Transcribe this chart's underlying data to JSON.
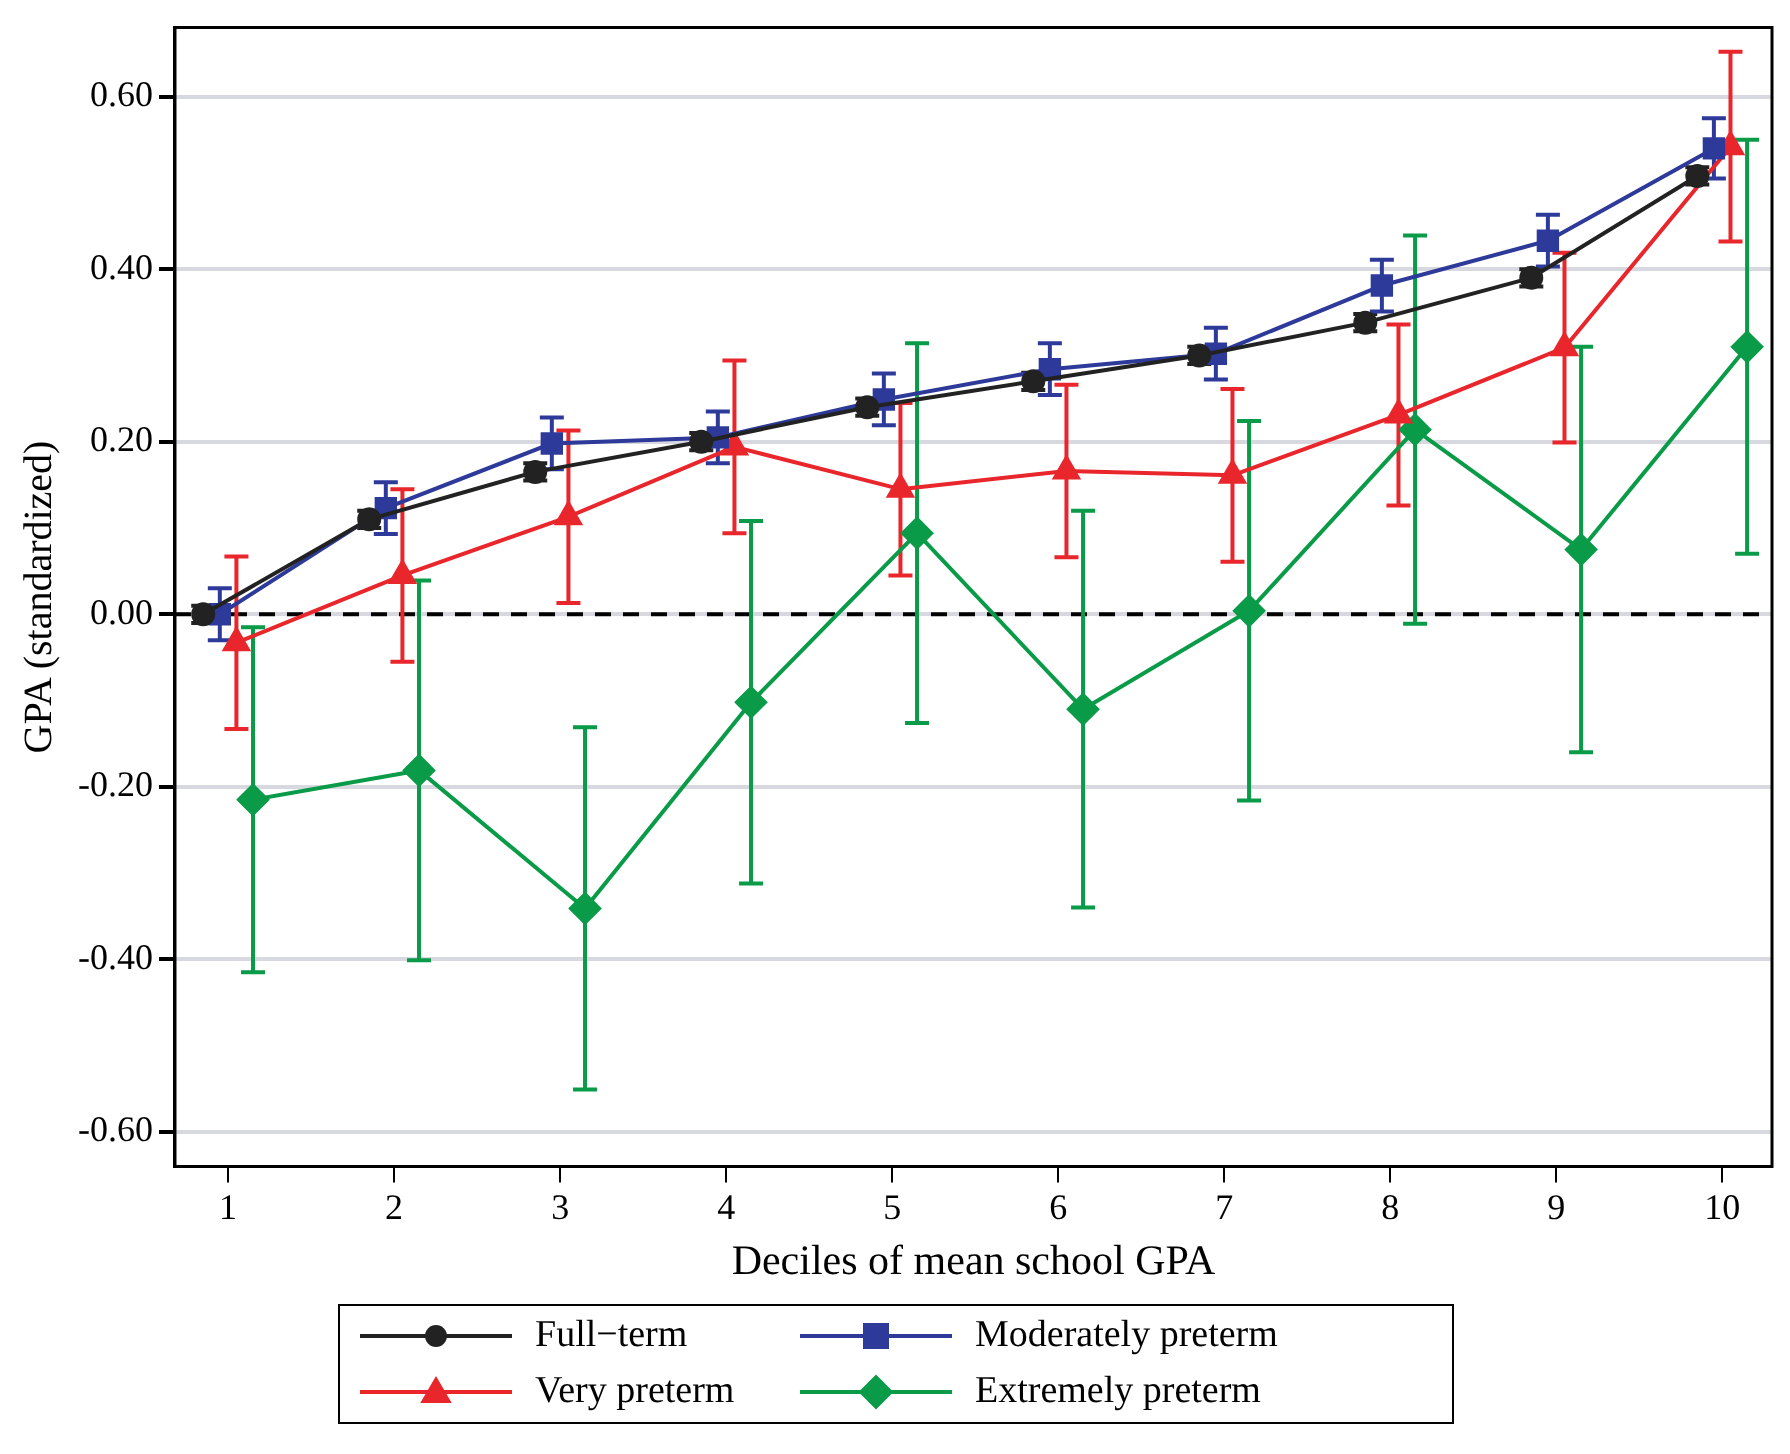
{
  "chart_data": {
    "type": "line",
    "xlabel": "Deciles of mean school GPA",
    "ylabel": "GPA (standardized)",
    "xlim": [
      0.68,
      10.3
    ],
    "xticks": [
      1,
      2,
      3,
      4,
      5,
      6,
      7,
      8,
      9,
      10
    ],
    "ylim": [
      -0.64,
      0.68
    ],
    "yticks": [
      {
        "value": -0.6,
        "label": "-0.60"
      },
      {
        "value": -0.4,
        "label": "-0.40"
      },
      {
        "value": -0.2,
        "label": "-0.20"
      },
      {
        "value": 0,
        "label": "0.00"
      },
      {
        "value": 0.2,
        "label": "0.20"
      },
      {
        "value": 0.4,
        "label": "0.40"
      },
      {
        "value": 0.6,
        "label": "0.60"
      }
    ],
    "grid": "y",
    "legend": "bottom",
    "ref_lines": [
      {
        "axis": "y",
        "value": 0,
        "color": "#000000",
        "line_style": "dashed"
      }
    ],
    "series": [
      {
        "name": "Full−term",
        "color": "#222222",
        "marker": "circle",
        "x": [
          0.85,
          1.85,
          2.85,
          3.85,
          4.85,
          5.85,
          6.85,
          7.85,
          8.85,
          9.85
        ],
        "values": [
          0.0,
          0.11,
          0.165,
          0.2,
          0.24,
          0.27,
          0.3,
          0.338,
          0.39,
          0.508
        ],
        "errors": [
          0.01,
          0.01,
          0.01,
          0.01,
          0.01,
          0.01,
          0.01,
          0.01,
          0.01,
          0.01
        ]
      },
      {
        "name": "Moderately preterm",
        "color": "#2e3a9a",
        "marker": "square",
        "x": [
          0.95,
          1.95,
          2.95,
          3.95,
          4.95,
          5.95,
          6.95,
          7.95,
          8.95,
          9.95
        ],
        "values": [
          0.0,
          0.123,
          0.198,
          0.205,
          0.249,
          0.284,
          0.302,
          0.381,
          0.433,
          0.54
        ],
        "errors": [
          0.03,
          0.03,
          0.03,
          0.03,
          0.03,
          0.03,
          0.03,
          0.03,
          0.03,
          0.035
        ]
      },
      {
        "name": "Very preterm",
        "color": "#e8262b",
        "marker": "triangle",
        "x": [
          1.05,
          2.05,
          3.05,
          4.05,
          5.05,
          6.05,
          7.05,
          8.05,
          9.05,
          10.05
        ],
        "values": [
          -0.033,
          0.045,
          0.113,
          0.194,
          0.145,
          0.166,
          0.161,
          0.231,
          0.309,
          0.542
        ],
        "errors": [
          0.1,
          0.1,
          0.1,
          0.1,
          0.1,
          0.1,
          0.1,
          0.105,
          0.11,
          0.11
        ]
      },
      {
        "name": "Extremely preterm",
        "color": "#0a9b48",
        "marker": "diamond",
        "x": [
          1.15,
          2.15,
          3.15,
          4.15,
          5.15,
          6.15,
          7.15,
          8.15,
          9.15,
          10.15
        ],
        "values": [
          -0.215,
          -0.181,
          -0.341,
          -0.102,
          0.094,
          -0.11,
          0.004,
          0.214,
          0.075,
          0.31
        ],
        "errors": [
          0.2,
          0.22,
          0.21,
          0.21,
          0.22,
          0.23,
          0.22,
          0.225,
          0.235,
          0.24
        ]
      }
    ]
  }
}
